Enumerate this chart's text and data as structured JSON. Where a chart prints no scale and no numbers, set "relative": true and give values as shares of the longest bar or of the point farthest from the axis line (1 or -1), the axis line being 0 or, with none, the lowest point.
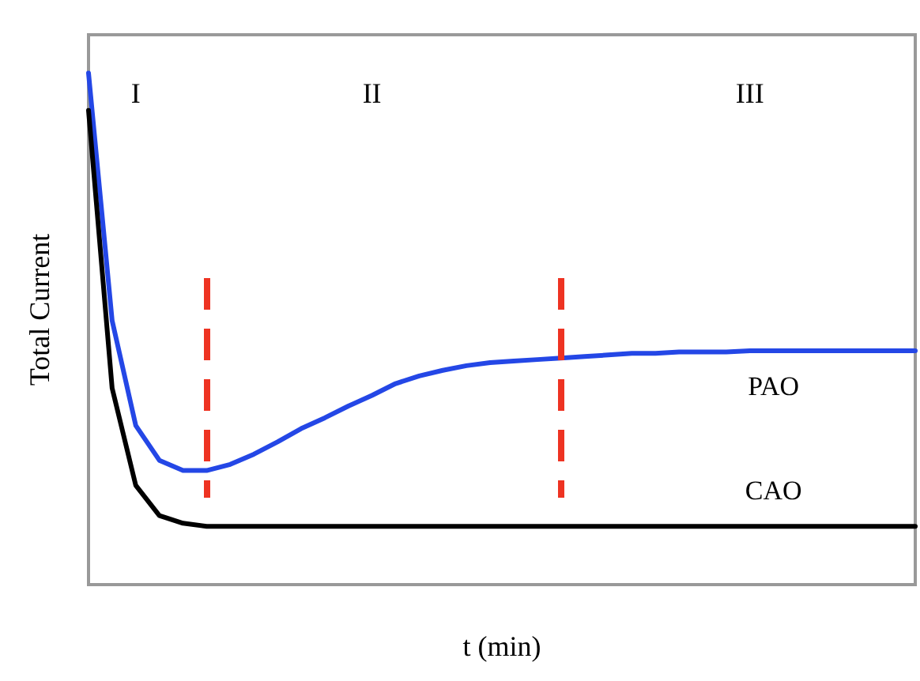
{
  "chart_data": {
    "type": "line",
    "relative": true,
    "xlabel": "t (min)",
    "ylabel": "Total Current",
    "categories": [
      null,
      null,
      null,
      null,
      null,
      null,
      null,
      null,
      null,
      null,
      null,
      null,
      null,
      null,
      null,
      null,
      null,
      null,
      null,
      null,
      null,
      null,
      null,
      null,
      null,
      null,
      null,
      null,
      null,
      null,
      null,
      null,
      null,
      null,
      null,
      null
    ],
    "series": [
      {
        "name": "PAO",
        "color": "#2447e6",
        "values": [
          1.0,
          0.516,
          0.311,
          0.243,
          0.223,
          0.223,
          0.235,
          0.255,
          0.279,
          0.305,
          0.326,
          0.349,
          0.37,
          0.393,
          0.408,
          0.419,
          0.428,
          0.434,
          0.437,
          0.44,
          0.443,
          0.446,
          0.449,
          0.452,
          0.452,
          0.455,
          0.455,
          0.455,
          0.457,
          0.457,
          0.457,
          0.457,
          0.457,
          0.457,
          0.457,
          0.457
        ]
      },
      {
        "name": "CAO",
        "color": "#000000",
        "values": [
          0.927,
          0.384,
          0.194,
          0.135,
          0.12,
          0.114,
          0.114,
          0.114,
          0.114,
          0.114,
          0.114,
          0.114,
          0.114,
          0.114,
          0.114,
          0.114,
          0.114,
          0.114,
          0.114,
          0.114,
          0.114,
          0.114,
          0.114,
          0.114,
          0.114,
          0.114,
          0.114,
          0.114,
          0.114,
          0.114,
          0.114,
          0.114,
          0.114,
          0.114,
          0.114,
          0.114
        ]
      }
    ],
    "annotations": [
      "I",
      "II",
      "III"
    ],
    "grid": false,
    "legend": false,
    "marker": "none",
    "line_style": "solid"
  }
}
